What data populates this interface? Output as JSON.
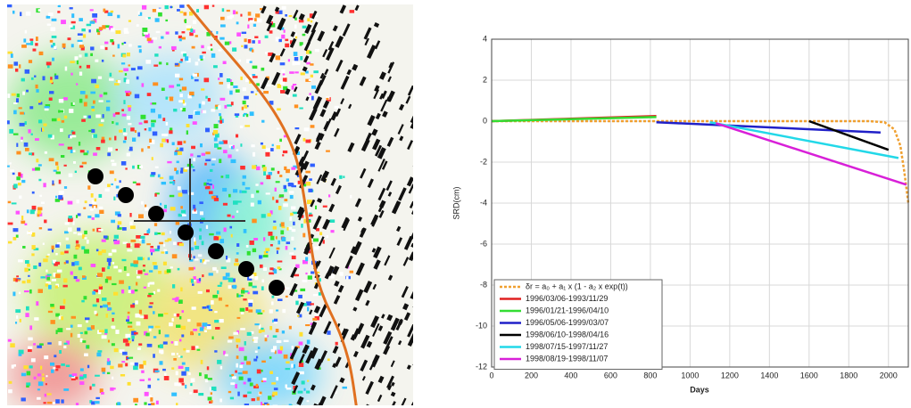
{
  "chart_data": {
    "type": "line",
    "ylabel": "SRD(cm)",
    "xlabel": "Days",
    "xlim": [
      0,
      2100
    ],
    "xticks": [
      0,
      200,
      400,
      600,
      800,
      1000,
      1200,
      1400,
      1600,
      1800,
      2000
    ],
    "ylim": [
      -12,
      4
    ],
    "yticks": [
      -12,
      -10,
      -8,
      -6,
      -4,
      -2,
      0,
      2,
      4
    ],
    "grid": true,
    "legend": "lower left",
    "series": [
      {
        "name": "δr = a₀ + a₁ x (1 - a₂ x exp(t))",
        "color": "#f0a030",
        "dashed": true,
        "x": [
          0,
          1000,
          1900,
          1980,
          2030,
          2060,
          2080,
          2100
        ],
        "values": [
          0,
          0,
          0,
          -0.05,
          -0.4,
          -1.2,
          -2.5,
          -4
        ]
      },
      {
        "name": "1996/03/06-1993/11/29",
        "color": "#e02020",
        "x": [
          0,
          830
        ],
        "values": [
          0,
          0.25
        ]
      },
      {
        "name": "1996/01/21-1996/04/10",
        "color": "#33dd33",
        "x": [
          0,
          830
        ],
        "values": [
          0,
          0.2
        ]
      },
      {
        "name": "1996/05/06-1999/03/07",
        "color": "#2020c8",
        "x": [
          830,
          1960
        ],
        "values": [
          -0.05,
          -0.55
        ]
      },
      {
        "name": "1998/06/10-1998/04/16",
        "color": "#000000",
        "x": [
          1600,
          2000
        ],
        "values": [
          0,
          -1.4
        ]
      },
      {
        "name": "1998/07/15-1997/11/27",
        "color": "#22d8e8",
        "x": [
          1100,
          2050
        ],
        "values": [
          -0.05,
          -1.8
        ]
      },
      {
        "name": "1998/08/19-1998/11/07",
        "color": "#d820d8",
        "x": [
          1130,
          2090
        ],
        "values": [
          -0.1,
          -3.1
        ]
      }
    ]
  }
}
